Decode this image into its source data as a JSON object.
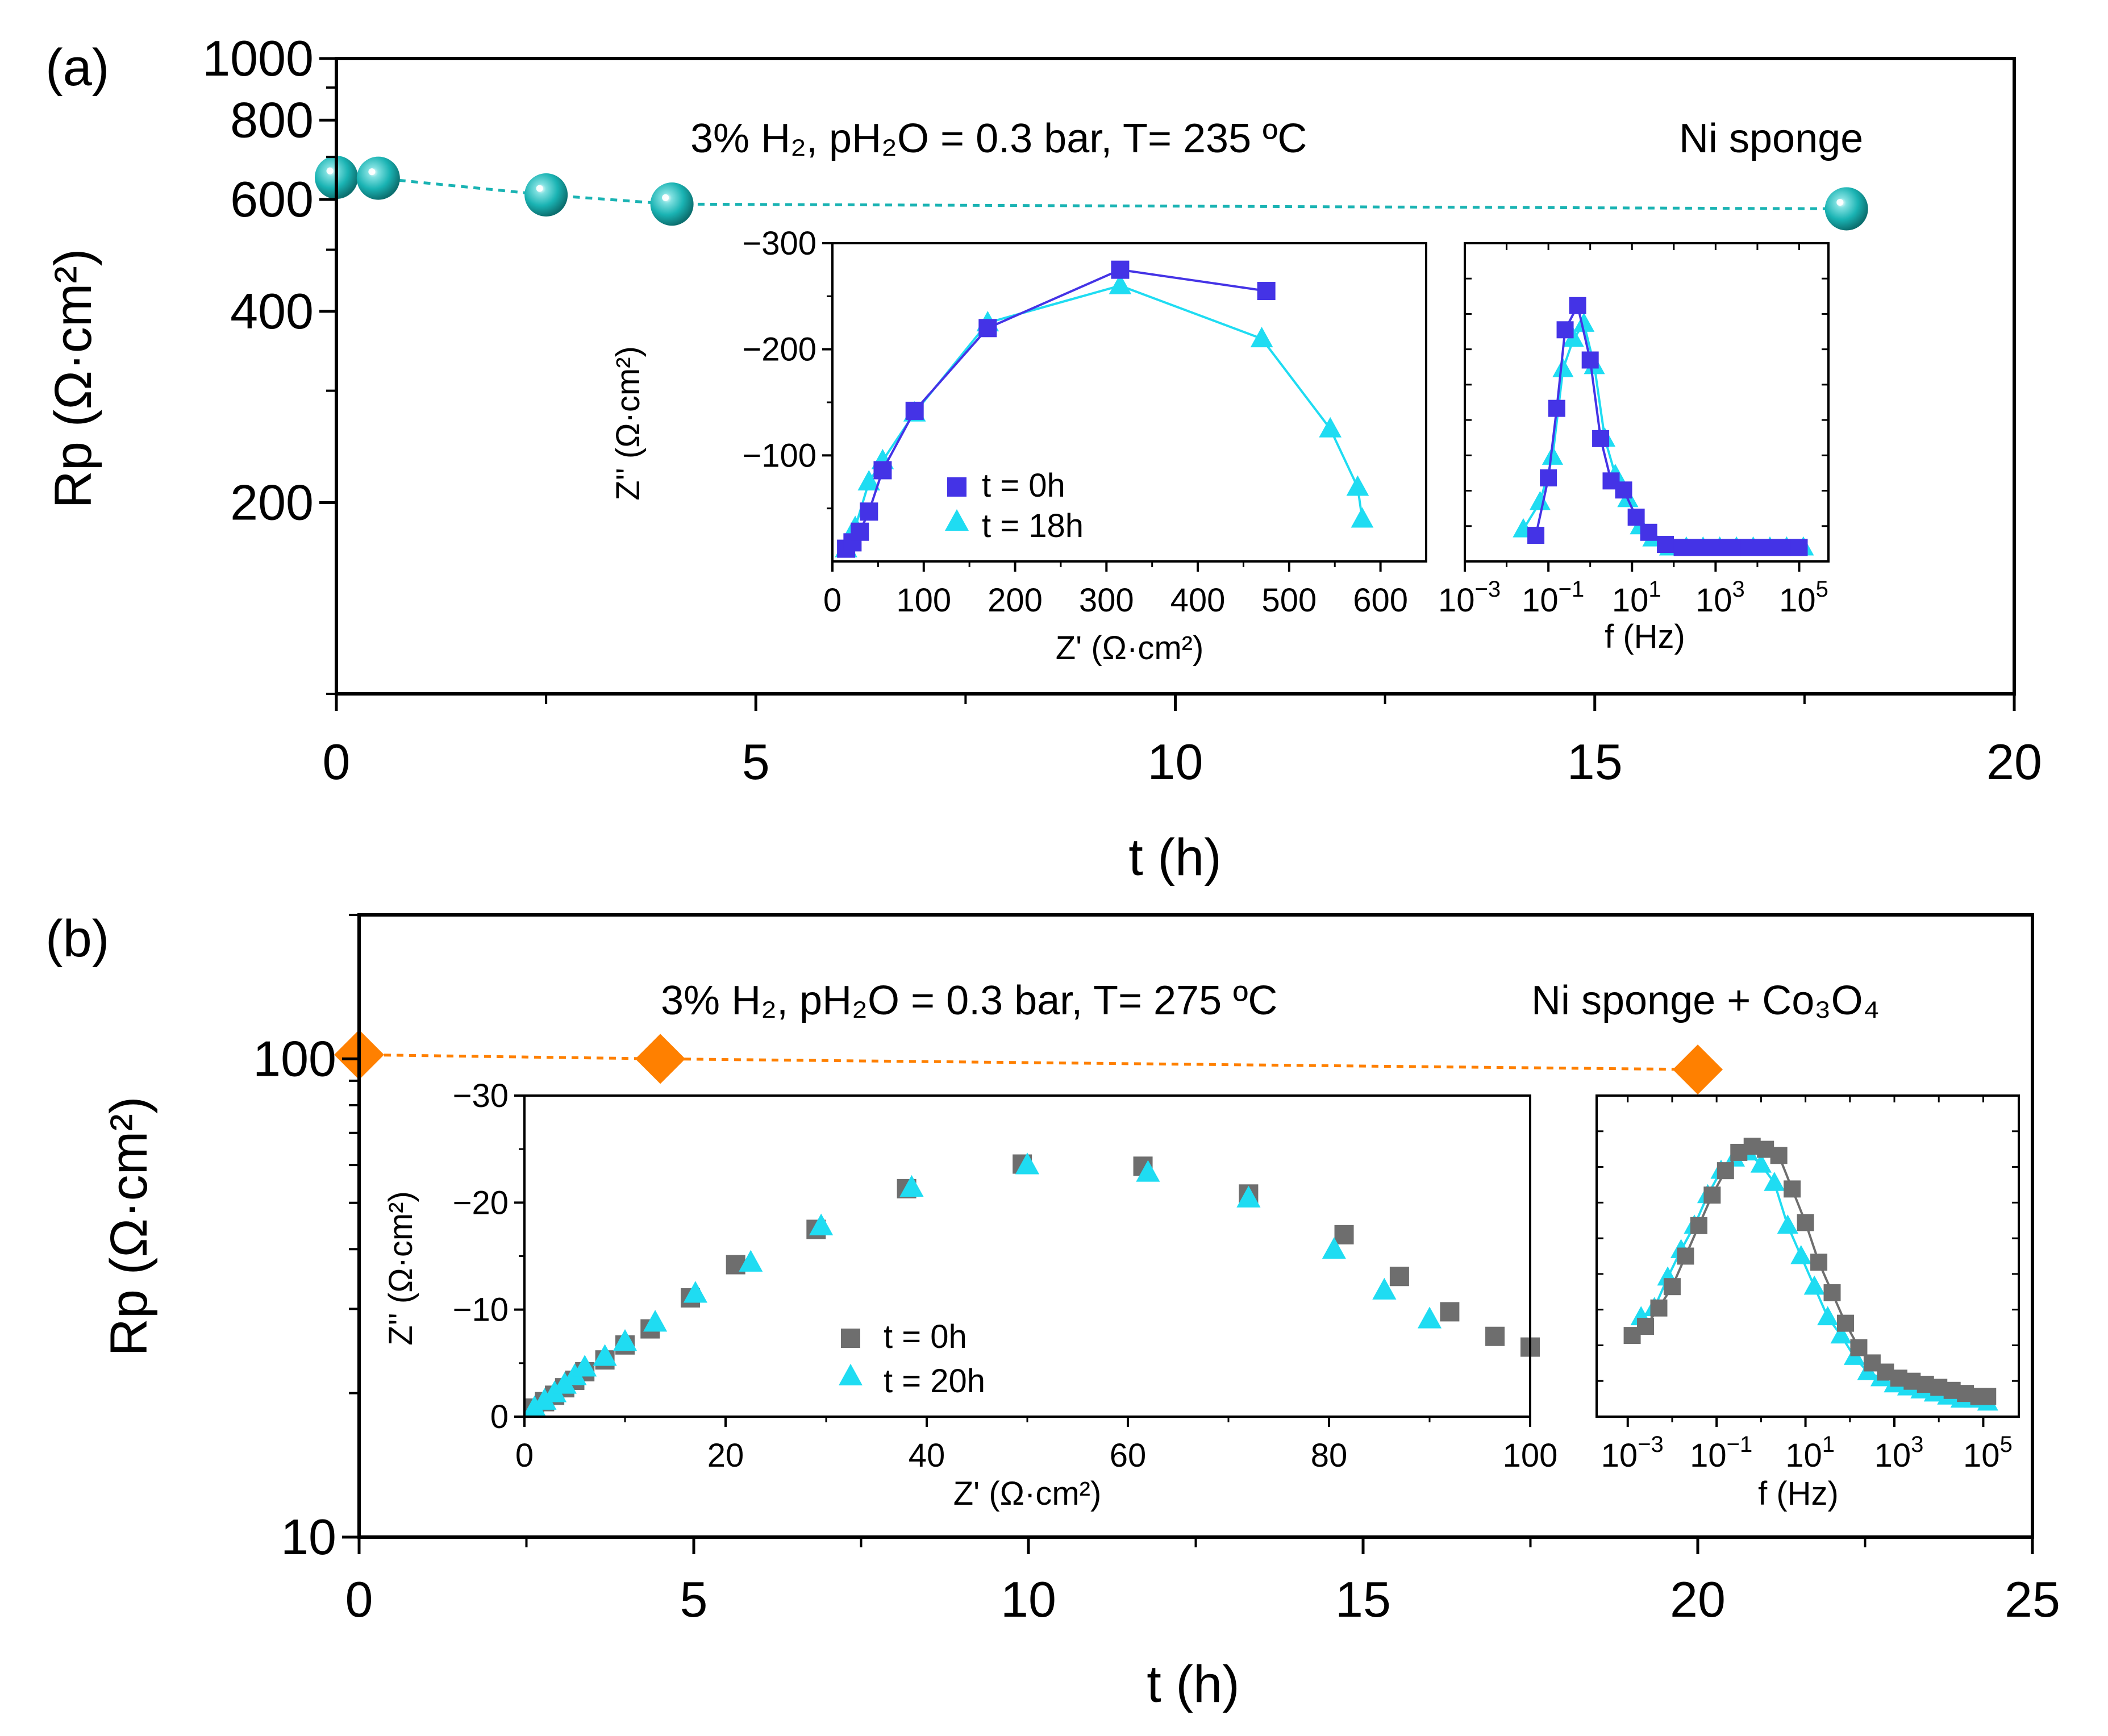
{
  "colors": {
    "teal": "#1ab3b3",
    "orange": "#ff8000",
    "blue": "#4433e6",
    "cyan": "#1fdcf2",
    "gray": "#6e6e6e"
  },
  "chart_data": [
    {
      "id": "a_main",
      "type": "scatter",
      "panel_label": "(a)",
      "annotation": "3% H₂, pH₂O = 0.3 bar, T= 235 ºC",
      "sample_label": "Ni sponge",
      "xlabel": "t (h)",
      "ylabel": "Rp (Ω·cm²)",
      "xlim": [
        0,
        20
      ],
      "ylim": [
        100,
        1000
      ],
      "yscale": "log",
      "xticks": [
        0,
        5,
        10,
        15,
        20
      ],
      "xtick_labels": [
        "0",
        "5",
        "10",
        "15",
        "20"
      ],
      "yticks": [
        200,
        400,
        600,
        800,
        1000
      ],
      "ytick_labels": [
        "200",
        "400",
        "600",
        "800",
        "1000"
      ],
      "series": [
        {
          "name": "Ni sponge",
          "marker": "sphere",
          "color": "#1ab3b3",
          "x": [
            0,
            0.5,
            2.5,
            4,
            18
          ],
          "y": [
            650,
            648,
            610,
            590,
            580
          ]
        }
      ]
    },
    {
      "id": "a_nyquist",
      "type": "line",
      "xlabel": "Z' (Ω·cm²)",
      "ylabel": "Z'' (Ω·cm²)",
      "xlim": [
        0,
        650
      ],
      "ylim": [
        0,
        -300
      ],
      "xticks": [
        0,
        100,
        200,
        300,
        400,
        500,
        600
      ],
      "xtick_labels": [
        "0",
        "100",
        "200",
        "300",
        "400",
        "500",
        "600"
      ],
      "yticks": [
        -300,
        -200,
        -100
      ],
      "ytick_labels": [
        "−300",
        "−200",
        "−100"
      ],
      "legend": [
        "t = 0h",
        "t = 18h"
      ],
      "series": [
        {
          "name": "t = 0h",
          "marker": "square",
          "color": "#4433e6",
          "x": [
            15,
            22,
            30,
            40,
            55,
            90,
            170,
            315,
            475
          ],
          "y": [
            -12,
            -18,
            -28,
            -47,
            -86,
            -142,
            -220,
            -275,
            -255
          ]
        },
        {
          "name": "t = 18h",
          "marker": "triangle",
          "color": "#1fdcf2",
          "x": [
            15,
            25,
            40,
            55,
            90,
            170,
            315,
            470,
            545,
            575,
            580
          ],
          "y": [
            -12,
            -32,
            -75,
            -95,
            -140,
            -225,
            -260,
            -210,
            -125,
            -70,
            -40
          ]
        }
      ]
    },
    {
      "id": "a_bode",
      "type": "line",
      "xlabel": "f (Hz)",
      "xscale": "log",
      "xlim": [
        -3,
        5.7
      ],
      "ylim": [
        0,
        1
      ],
      "xticks": [
        -3,
        -1,
        1,
        3,
        5
      ],
      "xtick_base": "10",
      "xtick_exps": [
        "−3",
        "−1",
        "1",
        "3",
        "5"
      ],
      "series": [
        {
          "name": "t = 0h",
          "marker": "square",
          "color": "#4433e6",
          "x": [
            -1.3,
            -1.0,
            -0.8,
            -0.6,
            -0.3,
            0.0,
            0.25,
            0.5,
            0.8,
            1.1,
            1.4,
            1.8,
            2.2,
            2.6,
            3.0,
            3.4,
            3.8,
            4.2,
            4.6,
            5.0
          ],
          "y": [
            0.06,
            0.25,
            0.48,
            0.74,
            0.82,
            0.64,
            0.38,
            0.24,
            0.21,
            0.12,
            0.07,
            0.03,
            0.02,
            0.02,
            0.02,
            0.02,
            0.02,
            0.02,
            0.02,
            0.02
          ]
        },
        {
          "name": "t = 18h",
          "marker": "triangle",
          "color": "#1fdcf2",
          "x": [
            -1.6,
            -1.2,
            -0.9,
            -0.65,
            -0.4,
            -0.15,
            0.1,
            0.35,
            0.6,
            0.9,
            1.2,
            1.5,
            1.9,
            2.3,
            2.7,
            3.1,
            3.5,
            3.9,
            4.3,
            4.7,
            5.1
          ],
          "y": [
            0.08,
            0.17,
            0.32,
            0.61,
            0.71,
            0.76,
            0.62,
            0.38,
            0.26,
            0.18,
            0.09,
            0.05,
            0.02,
            0.02,
            0.02,
            0.02,
            0.02,
            0.02,
            0.02,
            0.02,
            0.02
          ]
        }
      ]
    },
    {
      "id": "b_main",
      "type": "scatter",
      "panel_label": "(b)",
      "annotation": "3% H₂, pH₂O = 0.3 bar, T= 275 ºC",
      "sample_label": "Ni sponge + Co₃O₄",
      "xlabel": "t (h)",
      "ylabel": "Rp (Ω·cm²)",
      "xlim": [
        0,
        25
      ],
      "ylim": [
        10,
        200
      ],
      "yscale": "log",
      "xticks": [
        0,
        5,
        10,
        15,
        20,
        25
      ],
      "xtick_labels": [
        "0",
        "5",
        "10",
        "15",
        "20",
        "25"
      ],
      "yticks": [
        10,
        100
      ],
      "ytick_labels": [
        "10",
        "100"
      ],
      "series": [
        {
          "name": "Ni sponge + Co₃O₄",
          "marker": "diamond",
          "color": "#ff8000",
          "x": [
            0,
            4.5,
            20
          ],
          "y": [
            102,
            100,
            95
          ]
        }
      ]
    },
    {
      "id": "b_nyquist",
      "type": "scatter",
      "xlabel": "Z' (Ω·cm²)",
      "ylabel": "Z'' (Ω·cm²)",
      "xlim": [
        0,
        100
      ],
      "ylim": [
        0,
        -30
      ],
      "xticks": [
        0,
        20,
        40,
        60,
        80,
        100
      ],
      "xtick_labels": [
        "0",
        "20",
        "40",
        "60",
        "80",
        "100"
      ],
      "yticks": [
        0,
        -10,
        -20,
        -30
      ],
      "ytick_labels": [
        "0",
        "−10",
        "−20",
        "−30"
      ],
      "legend": [
        "t = 0h",
        "t = 20h"
      ],
      "series": [
        {
          "name": "t = 0h",
          "marker": "square",
          "color": "#6e6e6e",
          "x": [
            1,
            2,
            3,
            4,
            5,
            6,
            8,
            10,
            12.5,
            16.5,
            21,
            29,
            38,
            49.5,
            61.5,
            72,
            81.5,
            87,
            92,
            96.5,
            100
          ],
          "y": [
            -0.8,
            -1.4,
            -2,
            -2.7,
            -3.4,
            -4.2,
            -5.3,
            -6.7,
            -8.2,
            -11.1,
            -14.2,
            -17.5,
            -21.3,
            -23.6,
            -23.4,
            -20.8,
            -17,
            -13.1,
            -9.8,
            -7.5,
            -6.5
          ]
        },
        {
          "name": "t = 20h",
          "marker": "triangle",
          "color": "#1fdcf2",
          "x": [
            1,
            2,
            3,
            4,
            5,
            6,
            8,
            10,
            13,
            17,
            22.5,
            29.5,
            38.5,
            50,
            62,
            72,
            80.5,
            85.5,
            90
          ],
          "y": [
            -0.8,
            -1.5,
            -2.2,
            -3,
            -3.8,
            -4.6,
            -5.6,
            -7,
            -8.8,
            -11.5,
            -14.4,
            -17.8,
            -21.4,
            -23.5,
            -22.8,
            -20.4,
            -15.6,
            -11.8,
            -9.1
          ]
        }
      ]
    },
    {
      "id": "b_bode",
      "type": "line",
      "xlabel": "f (Hz)",
      "xscale": "log",
      "xlim": [
        -3.7,
        5.8
      ],
      "ylim": [
        0,
        1
      ],
      "xticks": [
        -3,
        -1,
        1,
        3,
        5
      ],
      "xtick_base": "10",
      "xtick_exps": [
        "−3",
        "−1",
        "1",
        "3",
        "5"
      ],
      "series": [
        {
          "name": "t = 0h",
          "marker": "square",
          "color": "#6e6e6e",
          "x": [
            -2.9,
            -2.6,
            -2.3,
            -2.0,
            -1.7,
            -1.4,
            -1.1,
            -0.8,
            -0.5,
            -0.2,
            0.1,
            0.4,
            0.7,
            1.0,
            1.3,
            1.6,
            1.9,
            2.2,
            2.5,
            2.8,
            3.1,
            3.4,
            3.7,
            4.0,
            4.3,
            4.6,
            4.9,
            5.1
          ],
          "y": [
            0.24,
            0.27,
            0.33,
            0.4,
            0.5,
            0.6,
            0.7,
            0.78,
            0.84,
            0.86,
            0.85,
            0.83,
            0.72,
            0.61,
            0.48,
            0.38,
            0.28,
            0.2,
            0.15,
            0.12,
            0.1,
            0.09,
            0.08,
            0.07,
            0.06,
            0.05,
            0.04,
            0.04
          ]
        },
        {
          "name": "t = 20h",
          "marker": "triangle",
          "color": "#1fdcf2",
          "x": [
            -2.7,
            -2.4,
            -2.1,
            -1.8,
            -1.5,
            -1.2,
            -0.9,
            -0.6,
            -0.3,
            0.0,
            0.3,
            0.6,
            0.9,
            1.2,
            1.5,
            1.8,
            2.1,
            2.4,
            2.7,
            3.0,
            3.3,
            3.6,
            3.9,
            4.2,
            4.5,
            4.8,
            5.1
          ],
          "y": [
            0.3,
            0.33,
            0.43,
            0.52,
            0.6,
            0.7,
            0.78,
            0.82,
            0.84,
            0.8,
            0.74,
            0.6,
            0.5,
            0.4,
            0.3,
            0.24,
            0.17,
            0.12,
            0.1,
            0.08,
            0.07,
            0.06,
            0.05,
            0.04,
            0.03,
            0.03,
            0.02
          ]
        }
      ]
    }
  ]
}
